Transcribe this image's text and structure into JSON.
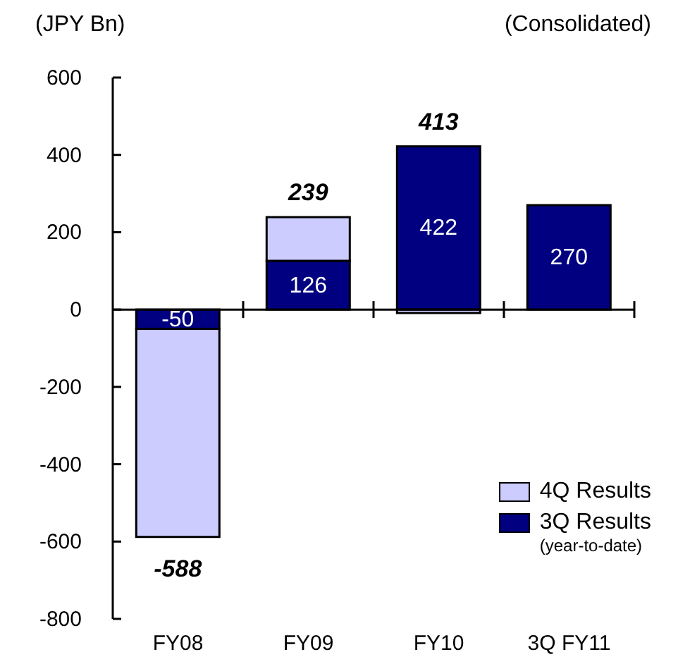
{
  "chart_data": {
    "type": "bar",
    "stacked": true,
    "ylabel": "(JPY Bn)",
    "annotations": [
      "(Consolidated)"
    ],
    "categories": [
      "FY08",
      "FY09",
      "FY10",
      "3Q FY11"
    ],
    "series": [
      {
        "name": "3Q Results (year-to-date)",
        "color": "#000080",
        "values": [
          -50,
          126,
          422,
          270
        ],
        "value_labels": [
          "-50",
          "126",
          "422",
          "270"
        ]
      },
      {
        "name": "4Q Results",
        "color": "#ccccff",
        "values": [
          -538,
          113,
          -9,
          null
        ]
      }
    ],
    "totals": [
      "-588",
      "239",
      "413",
      null
    ],
    "ylim": [
      -800,
      600
    ],
    "yticks": [
      -800,
      -600,
      -400,
      -200,
      0,
      200,
      400,
      600
    ],
    "legend": "bottom right"
  }
}
